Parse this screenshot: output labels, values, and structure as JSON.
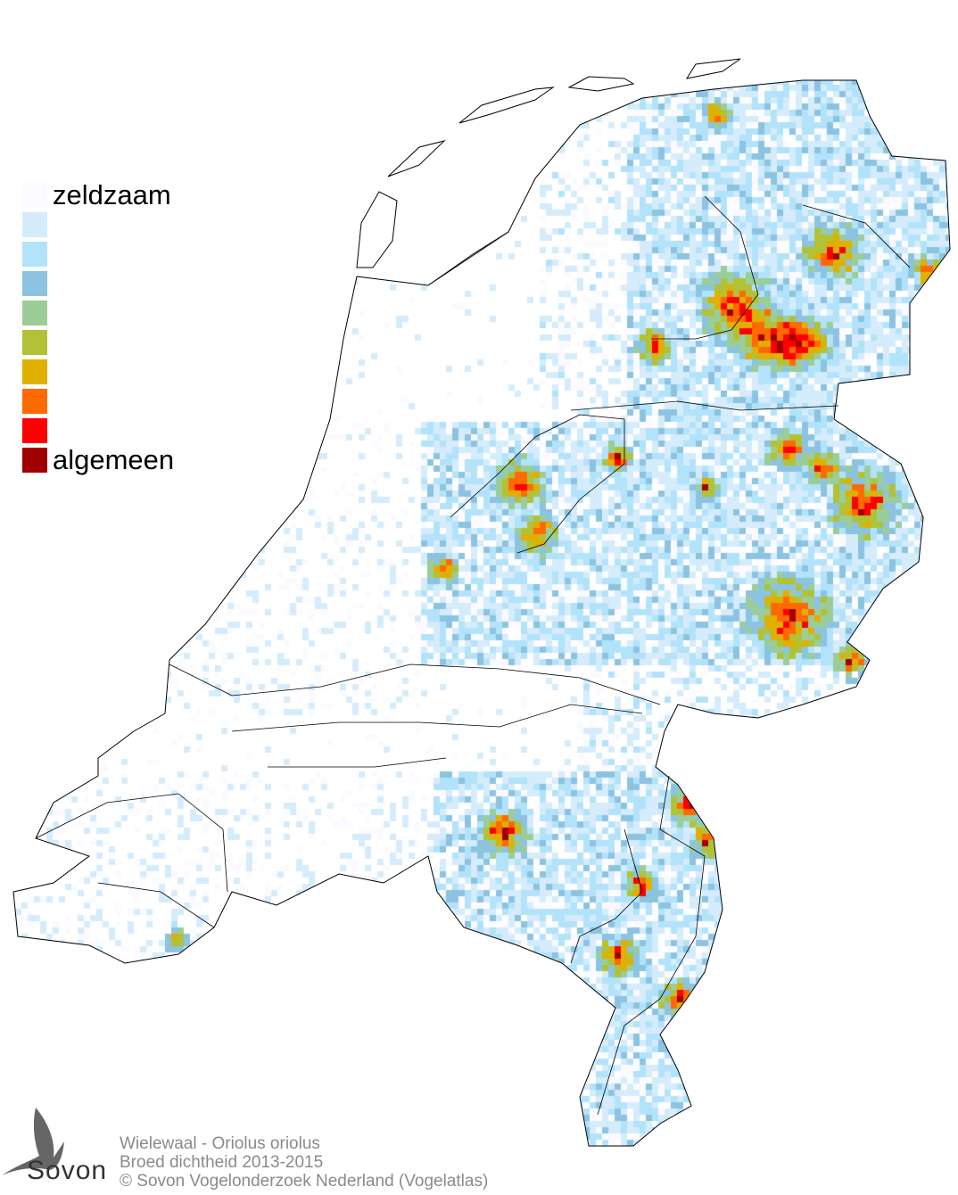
{
  "legend": {
    "items": [
      {
        "label": "zeldzaam",
        "color": "#fbfbff"
      },
      {
        "label": "",
        "color": "#d4ecfb"
      },
      {
        "label": "",
        "color": "#b2e3fb"
      },
      {
        "label": "",
        "color": "#8cc3e0"
      },
      {
        "label": "",
        "color": "#9acd98"
      },
      {
        "label": "",
        "color": "#b2c236"
      },
      {
        "label": "",
        "color": "#e0b000"
      },
      {
        "label": "",
        "color": "#ff6a00"
      },
      {
        "label": "",
        "color": "#ff0000"
      },
      {
        "label": "algemeen",
        "color": "#a00000"
      }
    ]
  },
  "footer": {
    "species": "Wielewaal - Oriolus oriolus",
    "subtitle": "Broed dichtheid 2013-2015",
    "copyright": "© Sovon Vogelonderzoek Nederland (Vogelatlas)"
  },
  "logo": {
    "text": "Sovon"
  },
  "colors": {
    "outline": "#000000",
    "background": "#ffffff",
    "footer_text": "#8a8a8a"
  }
}
